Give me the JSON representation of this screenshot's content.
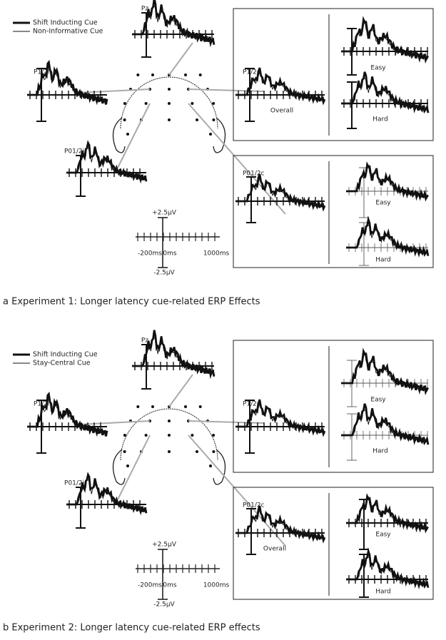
{
  "panels": [
    {
      "legend": [
        "Shift Inducting Cue",
        "Non-Informative Cue"
      ],
      "pz": "Pz",
      "ipsi_parietal": "P1/2i",
      "ipsi_occipital": "P01/2i",
      "contra_parietal": {
        "label": "P1/2c",
        "overall": "Overall",
        "easy": "Easy",
        "hard": "Hard"
      },
      "contra_occipital": {
        "label": "P01/2c",
        "easy": "Easy",
        "hard": "Hard"
      },
      "scale": {
        "top": "+2.5μV",
        "bottom": "-2.5μV",
        "start": "-200ms",
        "zero": "0ms",
        "end": "1000ms"
      },
      "caption": "a Experiment 1: Longer latency cue-related ERP Effects"
    },
    {
      "legend": [
        "Shift Inducting Cue",
        "Stay-Central Cue"
      ],
      "pz": "Pz",
      "ipsi_parietal": "P1/2i",
      "ipsi_occipital": "P01/2i",
      "contra_parietal": {
        "label": "P1/2c",
        "easy": "Easy",
        "hard": "Hard"
      },
      "contra_occipital": {
        "label": "P01/2c",
        "overall": "Overall",
        "easy": "Easy",
        "hard": "Hard"
      },
      "scale": {
        "top": "+2.5μV",
        "bottom": "-2.5μV",
        "start": "-200ms",
        "zero": "0ms",
        "end": "1000ms"
      },
      "caption": "b Experiment 2: Longer latency cue-related ERP effects"
    }
  ]
}
